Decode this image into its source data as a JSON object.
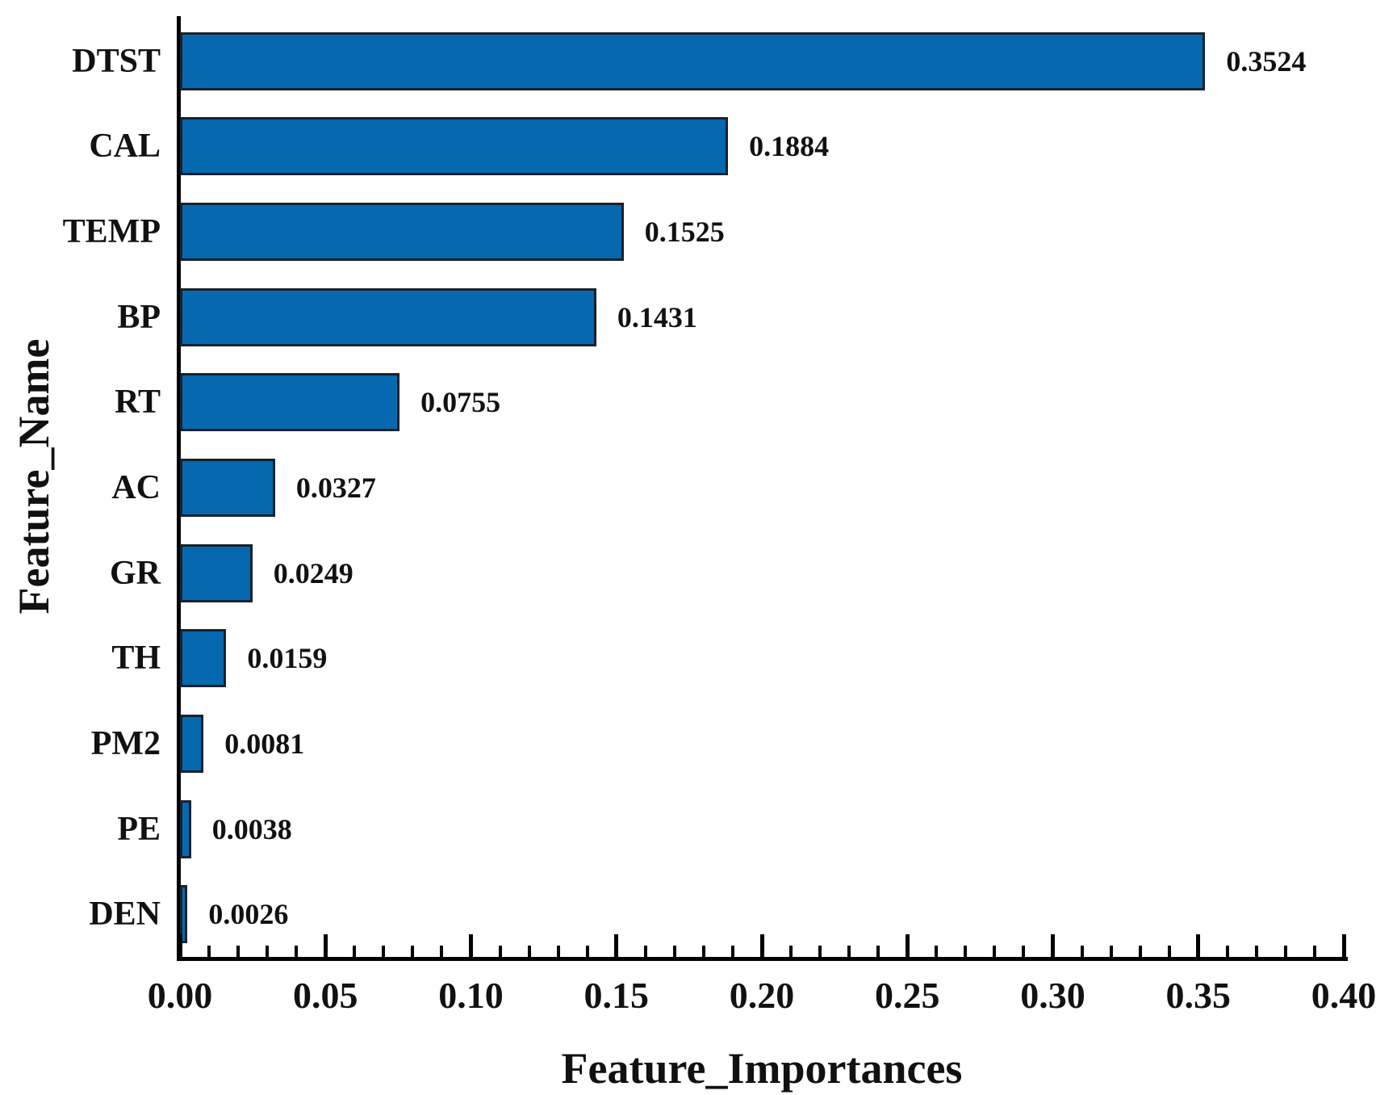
{
  "chart_data": {
    "type": "bar",
    "orientation": "horizontal",
    "title": "",
    "xlabel": "Feature_Importances",
    "ylabel": "Feature_Name",
    "categories": [
      "DTST",
      "CAL",
      "TEMP",
      "BP",
      "RT",
      "AC",
      "GR",
      "TH",
      "PM2",
      "PE",
      "DEN"
    ],
    "values": [
      0.3524,
      0.1884,
      0.1525,
      0.1431,
      0.0755,
      0.0327,
      0.0249,
      0.0159,
      0.0081,
      0.0038,
      0.0026
    ],
    "value_labels": [
      "0.3524",
      "0.1884",
      "0.1525",
      "0.1431",
      "0.0755",
      "0.0327",
      "0.0249",
      "0.0159",
      "0.0081",
      "0.0038",
      "0.0026"
    ],
    "xlim": [
      0,
      0.4
    ],
    "x_major_ticks": [
      0.0,
      0.05,
      0.1,
      0.15,
      0.2,
      0.25,
      0.3,
      0.35,
      0.4
    ],
    "x_major_tick_labels": [
      "0.00",
      "0.05",
      "0.10",
      "0.15",
      "0.20",
      "0.25",
      "0.30",
      "0.35",
      "0.40"
    ],
    "x_minor_tick_step": 0.01,
    "grid": false,
    "legend": null,
    "colors": {
      "bar_fill": "#0669b0",
      "bar_edge": "#16222e",
      "axis": "#000000",
      "text": "#111111",
      "background": "#ffffff"
    }
  }
}
